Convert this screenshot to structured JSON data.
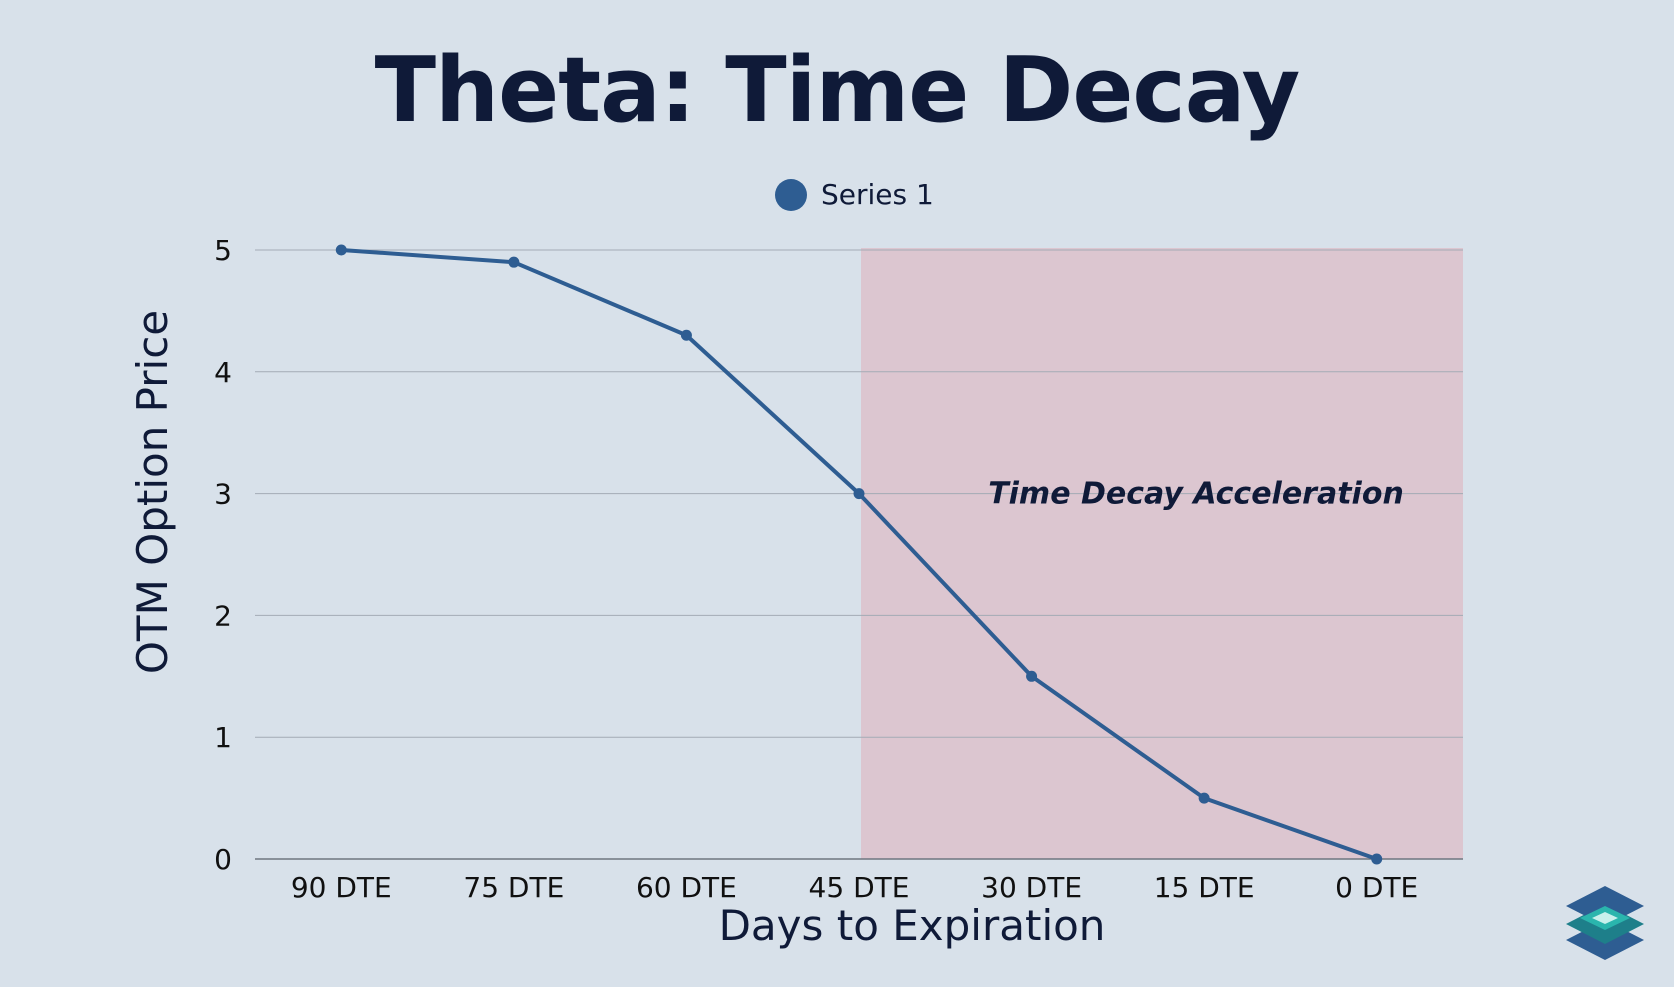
{
  "chart_data": {
    "type": "line",
    "title": "Theta: Time Decay",
    "xlabel": "Days to Expiration",
    "ylabel": "OTM Option Price",
    "categories": [
      "90 DTE",
      "75 DTE",
      "60 DTE",
      "45 DTE",
      "30 DTE",
      "15 DTE",
      "0 DTE"
    ],
    "series": [
      {
        "name": "Series 1",
        "values": [
          5.0,
          4.9,
          4.3,
          3.0,
          1.5,
          0.5,
          0.0
        ],
        "color": "#2e5d92"
      }
    ],
    "ylim": [
      0,
      5
    ],
    "yticks": [
      "0",
      "1",
      "2",
      "3",
      "4",
      "5"
    ],
    "grid": true,
    "legend_position": "top-center",
    "shaded_region": {
      "from_category": "45 DTE",
      "to": "end",
      "label": "Time Decay Acceleration",
      "color": "#dcc6d0"
    }
  },
  "colors": {
    "background": "#d8e1ea",
    "title": "#0f1a38",
    "line": "#2e5d92",
    "grid": "#a3abb5",
    "logo_dark": "#2e5d92",
    "logo_teal": "#2aa8a8"
  },
  "logo": {
    "icon": "stacked-layers-logo-icon"
  }
}
